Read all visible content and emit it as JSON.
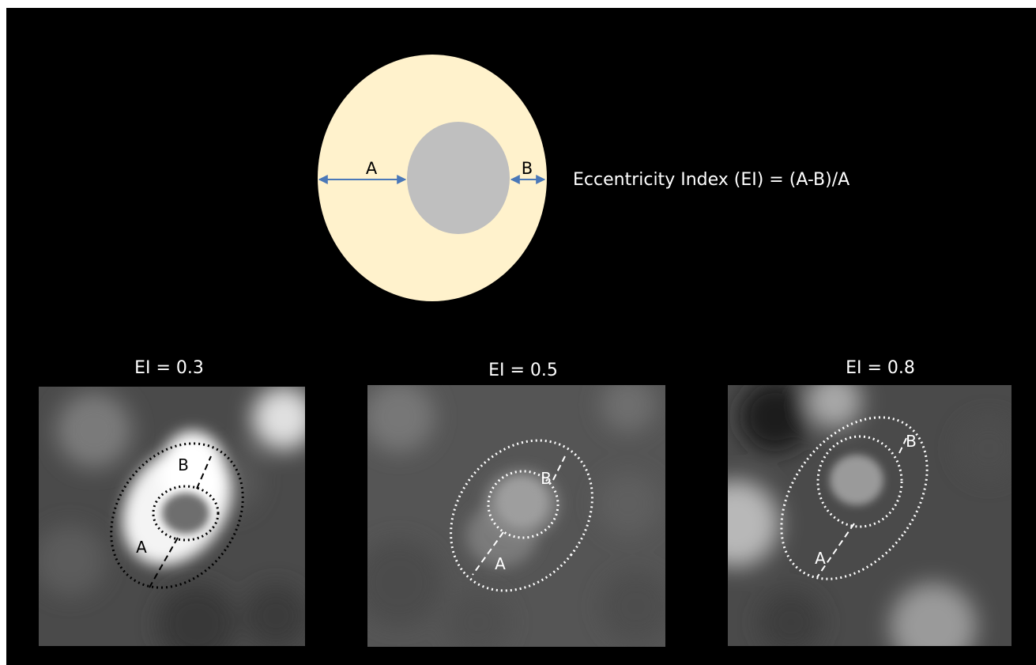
{
  "schematic": {
    "label_a": "A",
    "label_b": "B",
    "formula": "Eccentricity Index (EI) = (A-B)/A",
    "colors": {
      "wall": "#fff2cc",
      "lumen": "#bfbfbf",
      "arrow": "#4a78b8"
    }
  },
  "panels": [
    {
      "title": "EI = 0.3",
      "ei": 0.3,
      "label_a": "A",
      "label_b": "B",
      "contour_color": "#000000"
    },
    {
      "title": "EI = 0.5",
      "ei": 0.5,
      "label_a": "A",
      "label_b": "B",
      "contour_color": "#ffffff"
    },
    {
      "title": "EI = 0.8",
      "ei": 0.8,
      "label_a": "A",
      "label_b": "B",
      "contour_color": "#ffffff"
    }
  ]
}
